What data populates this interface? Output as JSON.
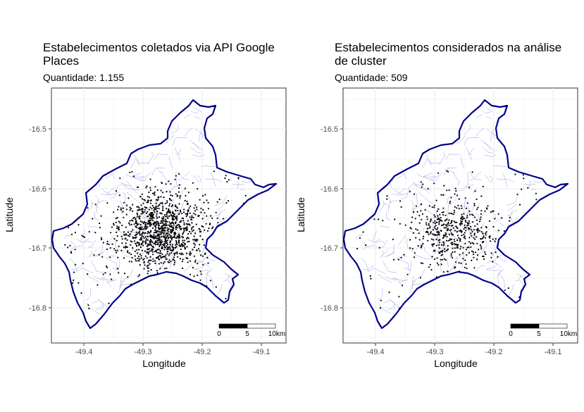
{
  "maps": [
    {
      "title": "Estabelecimentos coletados via API Google\nPlaces",
      "subtitle": "Quantidade: 1.155",
      "count": 1155
    },
    {
      "title": "Estabelecimentos considerados na análise\nde cluster",
      "subtitle": "Quantidade: 509",
      "count": 509
    }
  ],
  "axes": {
    "xlabel": "Longitude",
    "ylabel": "Latitude",
    "x_ticks": [
      "-49.4",
      "-49.3",
      "-49.2",
      "-49.1"
    ],
    "y_ticks": [
      "-16.5",
      "-16.6",
      "-16.7",
      "-16.8"
    ]
  },
  "scale_bar": {
    "labels": [
      "0",
      "5",
      "10km"
    ]
  },
  "colors": {
    "boundary": "#00008b",
    "neighborhoods": "#9a9ae6",
    "points": "#000000",
    "grid": "#ebebeb",
    "panel_border": "#333333"
  }
}
